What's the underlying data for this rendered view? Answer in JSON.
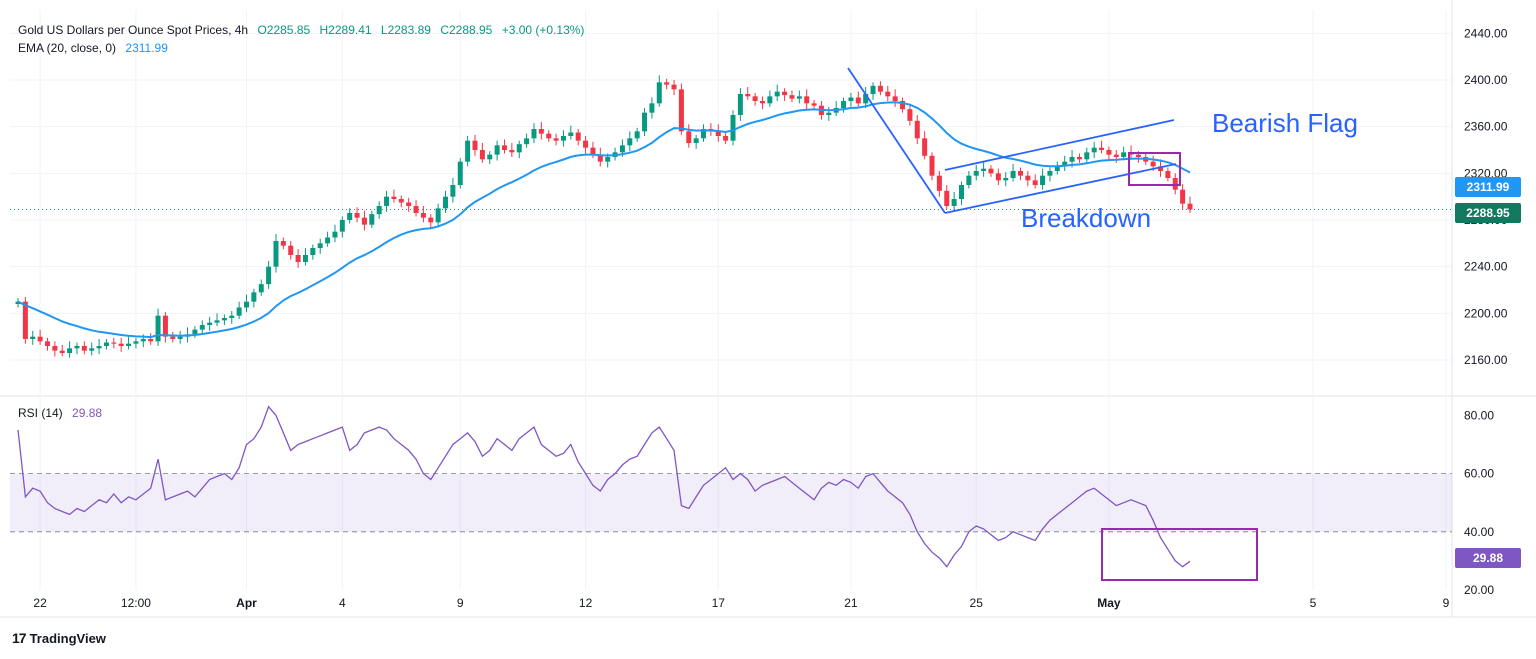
{
  "header": {
    "title": "Gold US Dollars per Ounce Spot Prices, 4h",
    "open": "O2285.85",
    "high": "H2289.41",
    "low": "L2283.89",
    "close": "C2288.95",
    "change": "+3.00 (+0.13%)",
    "ema_label": "EMA (20, close, 0)",
    "ema_value": "2311.99",
    "rsi_label": "RSI (14)",
    "rsi_value": "29.88"
  },
  "annotations": {
    "bearish_flag": "Bearish Flag",
    "breakdown": "Breakdown"
  },
  "badges": {
    "ema_price": "2311.99",
    "last_price": "2288.95",
    "rsi_last": "29.88"
  },
  "brand": {
    "name": "TradingView",
    "logo_text": "17"
  },
  "colors": {
    "up": "#089981",
    "down": "#f23645",
    "ema": "#2196f3",
    "rsi": "#7e57c2",
    "annotation": "#2962ff",
    "box": "#9c27b0"
  },
  "chart_data": [
    {
      "type": "candlestick",
      "title": "Gold US Dollars per Ounce Spot Prices, 4h",
      "x_tick_labels": [
        "22",
        "12:00",
        "Apr",
        "4",
        "9",
        "12",
        "17",
        "21",
        "25",
        "May",
        "5",
        "9"
      ],
      "y_ticks": [
        2160,
        2200,
        2240,
        2280,
        2320,
        2360,
        2400,
        2440
      ],
      "y_tick_labels": [
        "2160.00",
        "2200.00",
        "2240.00",
        "2280.00",
        "2320.00",
        "2360.00",
        "2400.00",
        "2440.00"
      ],
      "ylim": [
        2130,
        2460
      ],
      "xlim": [
        0,
        185
      ],
      "last_close": 2288.95,
      "close_series": [
        2210,
        2178,
        2180,
        2176,
        2172,
        2168,
        2166,
        2170,
        2172,
        2168,
        2170,
        2172,
        2175,
        2174,
        2172,
        2174,
        2176,
        2178,
        2176,
        2198,
        2180,
        2178,
        2180,
        2182,
        2186,
        2190,
        2192,
        2194,
        2196,
        2198,
        2205,
        2210,
        2218,
        2225,
        2240,
        2262,
        2258,
        2250,
        2244,
        2250,
        2256,
        2260,
        2265,
        2270,
        2280,
        2286,
        2282,
        2276,
        2285,
        2292,
        2300,
        2298,
        2295,
        2292,
        2286,
        2282,
        2278,
        2290,
        2300,
        2310,
        2330,
        2348,
        2340,
        2332,
        2336,
        2344,
        2340,
        2338,
        2345,
        2350,
        2358,
        2354,
        2350,
        2348,
        2352,
        2355,
        2348,
        2342,
        2336,
        2330,
        2334,
        2338,
        2344,
        2350,
        2356,
        2372,
        2380,
        2398,
        2396,
        2392,
        2356,
        2346,
        2350,
        2358,
        2356,
        2352,
        2348,
        2370,
        2388,
        2386,
        2382,
        2380,
        2386,
        2390,
        2387,
        2384,
        2386,
        2380,
        2378,
        2370,
        2372,
        2376,
        2382,
        2385,
        2380,
        2388,
        2395,
        2390,
        2386,
        2382,
        2375,
        2365,
        2350,
        2335,
        2318,
        2305,
        2292,
        2298,
        2310,
        2318,
        2322,
        2324,
        2320,
        2314,
        2316,
        2322,
        2318,
        2314,
        2310,
        2318,
        2322,
        2326,
        2330,
        2334,
        2332,
        2338,
        2342,
        2340,
        2336,
        2334,
        2338,
        2336,
        2334,
        2330,
        2326,
        2322,
        2316,
        2306,
        2294,
        2289
      ],
      "series": [
        {
          "name": "EMA (20, close, 0)",
          "last": 2311.99
        }
      ],
      "annotations": [
        {
          "text": "Bearish Flag",
          "type": "label"
        },
        {
          "text": "Breakdown",
          "type": "label"
        }
      ]
    },
    {
      "type": "line",
      "title": "RSI (14)",
      "y_ticks": [
        20,
        40,
        60,
        80
      ],
      "y_tick_labels": [
        "20.00",
        "40.00",
        "60.00",
        "80.00"
      ],
      "ylim": [
        20,
        86
      ],
      "bands": [
        40,
        60
      ],
      "last": 29.88,
      "values": [
        75,
        52,
        55,
        54,
        50,
        48,
        47,
        46,
        48,
        47,
        49,
        51,
        50,
        53,
        50,
        52,
        51,
        53,
        55,
        65,
        51,
        52,
        53,
        54,
        52,
        55,
        58,
        59,
        60,
        58,
        62,
        70,
        72,
        76,
        83,
        80,
        74,
        68,
        70,
        71,
        72,
        73,
        74,
        75,
        76,
        68,
        70,
        74,
        75,
        76,
        75,
        72,
        70,
        68,
        65,
        60,
        58,
        62,
        66,
        70,
        72,
        74,
        71,
        66,
        68,
        72,
        70,
        68,
        72,
        74,
        76,
        70,
        68,
        66,
        67,
        70,
        64,
        60,
        56,
        54,
        58,
        60,
        63,
        65,
        66,
        70,
        74,
        76,
        72,
        68,
        49,
        48,
        52,
        56,
        58,
        60,
        62,
        58,
        60,
        58,
        54,
        56,
        57,
        58,
        59,
        57,
        55,
        53,
        51,
        55,
        57,
        56,
        58,
        57,
        55,
        59,
        60,
        57,
        54,
        52,
        50,
        46,
        40,
        36,
        33,
        31,
        28,
        32,
        35,
        40,
        42,
        41,
        39,
        37,
        38,
        40,
        39,
        38,
        37,
        41,
        44,
        46,
        48,
        50,
        52,
        54,
        55,
        53,
        51,
        49,
        50,
        51,
        50,
        49,
        44,
        38,
        34,
        30,
        28,
        29.88
      ],
      "x_tick_labels": [
        "22",
        "12:00",
        "Apr",
        "4",
        "9",
        "12",
        "17",
        "21",
        "25",
        "May",
        "5",
        "9"
      ]
    }
  ]
}
